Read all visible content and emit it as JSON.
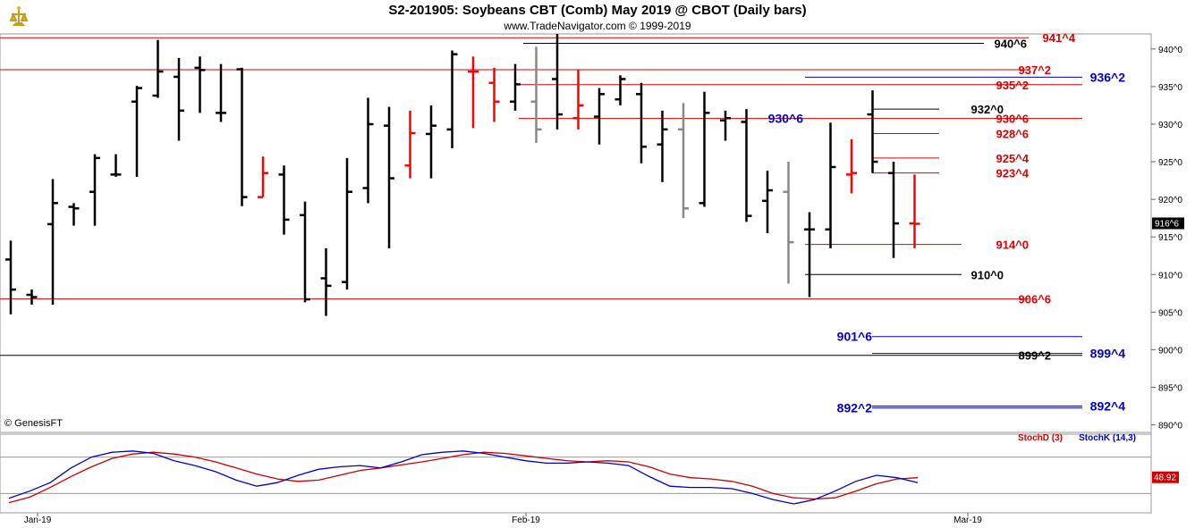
{
  "header": {
    "title": "S2-201905:  Soybeans CBT (Comb) May 2019 @ CBOT  (Daily bars)",
    "subtitle": "www.TradeNavigator.com © 1999-2019"
  },
  "footer": {
    "copyright": "© GenesisFT"
  },
  "colors": {
    "up": "#ff0000",
    "down": "#000000",
    "gray": "#888888",
    "blue": "#0000cc",
    "green": "#00cc00"
  },
  "chart_data": [
    {
      "type": "bar",
      "title": "S2-201905:  Soybeans CBT (Comb) May 2019 @ CBOT  (Daily bars)",
      "ylim": [
        889,
        942
      ],
      "y_ticks": [
        "940^0",
        "935^0",
        "930^0",
        "925^0",
        "920^0",
        "915^0",
        "910^0",
        "905^0",
        "900^0",
        "895^0",
        "890^0"
      ],
      "x_ticks": [
        "Jan-19",
        "Feb-19",
        "Mar-19"
      ],
      "last_price_label": "916^6",
      "last_price": 916.75,
      "bars": [
        {
          "o": 912,
          "h": 914.5,
          "l": 904.7,
          "c": 908,
          "color": "down"
        },
        {
          "o": 907.3,
          "h": 908,
          "l": 906,
          "c": 907,
          "color": "down"
        },
        {
          "o": 916.7,
          "h": 922.7,
          "l": 906,
          "c": 919.5,
          "color": "down"
        },
        {
          "o": 919,
          "h": 919.5,
          "l": 916.5,
          "c": 918.8,
          "color": "down"
        },
        {
          "o": 921,
          "h": 926,
          "l": 916.5,
          "c": 925.5,
          "color": "down"
        },
        {
          "o": 923.3,
          "h": 926,
          "l": 923,
          "c": 923.3,
          "color": "down"
        },
        {
          "o": 933,
          "h": 935.1,
          "l": 923,
          "c": 934.8,
          "color": "down"
        },
        {
          "o": 933.8,
          "h": 941.2,
          "l": 933.5,
          "c": 937,
          "color": "down"
        },
        {
          "o": 936.3,
          "h": 938.8,
          "l": 927.8,
          "c": 931.8,
          "color": "down"
        },
        {
          "o": 937.5,
          "h": 939,
          "l": 931.5,
          "c": 937.2,
          "color": "down"
        },
        {
          "o": 931.5,
          "h": 938,
          "l": 930.3,
          "c": 931.5,
          "color": "down"
        },
        {
          "o": 937.3,
          "h": 937.5,
          "l": 919.1,
          "c": 920.3,
          "color": "down"
        },
        {
          "o": 920.3,
          "h": 925.7,
          "l": 920.3,
          "c": 923.5,
          "color": "up"
        },
        {
          "o": 923.3,
          "h": 924.5,
          "l": 915.3,
          "c": 917.3,
          "color": "down"
        },
        {
          "o": 917.9,
          "h": 919.7,
          "l": 906.3,
          "c": 906.7,
          "color": "down"
        },
        {
          "o": 909.5,
          "h": 913.5,
          "l": 904.5,
          "c": 908.5,
          "color": "down"
        },
        {
          "o": 909,
          "h": 925.5,
          "l": 908,
          "c": 921,
          "color": "down"
        },
        {
          "o": 921.5,
          "h": 933.5,
          "l": 919.5,
          "c": 930,
          "color": "down"
        },
        {
          "o": 929.8,
          "h": 932.3,
          "l": 913.5,
          "c": 922.8,
          "color": "down"
        },
        {
          "o": 924.5,
          "h": 931.8,
          "l": 922.8,
          "c": 928.8,
          "color": "up"
        },
        {
          "o": 928.7,
          "h": 932.5,
          "l": 922.8,
          "c": 929.8,
          "color": "down"
        },
        {
          "o": 929.3,
          "h": 939.8,
          "l": 926.8,
          "c": 939.3,
          "color": "down"
        },
        {
          "o": 937,
          "h": 939,
          "l": 929.5,
          "c": 937,
          "color": "up"
        },
        {
          "o": 935.5,
          "h": 937.5,
          "l": 930.3,
          "c": 933,
          "color": "up"
        },
        {
          "o": 933,
          "h": 938,
          "l": 931.8,
          "c": 935.3,
          "color": "down"
        },
        {
          "o": 933,
          "h": 940.3,
          "l": 927.5,
          "c": 929.3,
          "color": "gray"
        },
        {
          "o": 936,
          "h": 942,
          "l": 929.3,
          "c": 931.3,
          "color": "down"
        },
        {
          "o": 930.8,
          "h": 937.3,
          "l": 929.3,
          "c": 932.5,
          "color": "up"
        },
        {
          "o": 931,
          "h": 934.8,
          "l": 927.3,
          "c": 934,
          "color": "down"
        },
        {
          "o": 933.3,
          "h": 936.5,
          "l": 932.5,
          "c": 936,
          "color": "down"
        },
        {
          "o": 934,
          "h": 935.5,
          "l": 924.8,
          "c": 927,
          "color": "down"
        },
        {
          "o": 927.3,
          "h": 931.8,
          "l": 922.3,
          "c": 929.3,
          "color": "down"
        },
        {
          "o": 929.3,
          "h": 932.8,
          "l": 917.5,
          "c": 918.8,
          "color": "gray"
        },
        {
          "o": 919.5,
          "h": 934.3,
          "l": 919,
          "c": 931.5,
          "color": "down"
        },
        {
          "o": 930.5,
          "h": 931.8,
          "l": 927.8,
          "c": 930.8,
          "color": "down"
        },
        {
          "o": 930.3,
          "h": 932,
          "l": 917,
          "c": 917.8,
          "color": "down"
        },
        {
          "o": 919.8,
          "h": 923.8,
          "l": 915.5,
          "c": 921.2,
          "color": "down"
        },
        {
          "o": 921,
          "h": 925,
          "l": 908.8,
          "c": 914.3,
          "color": "gray"
        },
        {
          "o": 916,
          "h": 918.3,
          "l": 907,
          "c": 916,
          "color": "down"
        },
        {
          "o": 916,
          "h": 930.2,
          "l": 913.5,
          "c": 924.3,
          "color": "down"
        },
        {
          "o": 923.3,
          "h": 928,
          "l": 920.8,
          "c": 923.5,
          "color": "up"
        },
        {
          "o": 931.3,
          "h": 934.5,
          "l": 923.5,
          "c": 925,
          "color": "down"
        },
        {
          "o": 923.5,
          "h": 925,
          "l": 912.2,
          "c": 916.8,
          "color": "down"
        },
        {
          "o": 916.8,
          "h": 923.3,
          "l": 913.5,
          "c": 916.75,
          "color": "up"
        }
      ],
      "levels": [
        {
          "price": 941.5,
          "label": "941^4",
          "color": "red",
          "line": "full"
        },
        {
          "price": 940.75,
          "label": "940^6",
          "color": "black",
          "line": "right"
        },
        {
          "price": 937.25,
          "label": "937^2",
          "color": "red",
          "line": "full"
        },
        {
          "price": 936.25,
          "label": "936^2",
          "color": "blue",
          "line": "right"
        },
        {
          "price": 935.25,
          "label": "935^2",
          "color": "red",
          "line": "mid"
        },
        {
          "price": 932.0,
          "label": "932^0",
          "color": "black",
          "line": "short"
        },
        {
          "price": 930.75,
          "label": "930^6",
          "color": "red",
          "line": "mid"
        },
        {
          "price": 930.75,
          "label": "930^6",
          "color": "blue",
          "line": "none"
        },
        {
          "price": 928.75,
          "label": "928^6",
          "color": "red",
          "line": "short"
        },
        {
          "price": 925.5,
          "label": "925^4",
          "color": "red",
          "line": "short"
        },
        {
          "price": 923.5,
          "label": "923^4",
          "color": "red",
          "line": "short"
        },
        {
          "price": 914.0,
          "label": "914^0",
          "color": "red",
          "line": "short"
        },
        {
          "price": 910.0,
          "label": "910^0",
          "color": "black",
          "line": "short"
        },
        {
          "price": 906.75,
          "label": "906^6",
          "color": "red",
          "line": "full"
        },
        {
          "price": 901.75,
          "label": "901^6",
          "color": "blue",
          "line": "right"
        },
        {
          "price": 899.5,
          "label": "899^4",
          "color": "blue",
          "line": "right"
        },
        {
          "price": 899.25,
          "label": "899^2",
          "color": "black",
          "line": "full"
        },
        {
          "price": 892.5,
          "label": "892^4",
          "color": "blue",
          "line": "right"
        },
        {
          "price": 892.25,
          "label": "892^2",
          "color": "blue",
          "line": "right"
        }
      ]
    },
    {
      "type": "line",
      "legend": [
        "StochD (3)",
        "StochK (14,3)"
      ],
      "ylim": [
        0,
        100
      ],
      "value_label": "48.92",
      "series": [
        {
          "name": "StochD (3)",
          "color": "#cc0000",
          "values": [
            5,
            14,
            30,
            48,
            64,
            78,
            85,
            88,
            85,
            80,
            72,
            62,
            52,
            44,
            40,
            42,
            50,
            58,
            62,
            67,
            72,
            78,
            84,
            88,
            86,
            82,
            78,
            74,
            72,
            74,
            72,
            64,
            52,
            46,
            44,
            40,
            32,
            20,
            13,
            11,
            13,
            24,
            36,
            44,
            46
          ]
        },
        {
          "name": "StochK (14,3)",
          "color": "#0000cc",
          "values": [
            12,
            24,
            38,
            62,
            80,
            88,
            90,
            86,
            74,
            66,
            56,
            42,
            32,
            38,
            50,
            60,
            64,
            66,
            62,
            72,
            84,
            88,
            90,
            86,
            80,
            74,
            70,
            70,
            72,
            70,
            66,
            48,
            32,
            30,
            30,
            28,
            20,
            10,
            3,
            10,
            24,
            40,
            50,
            46,
            38
          ]
        }
      ]
    }
  ]
}
